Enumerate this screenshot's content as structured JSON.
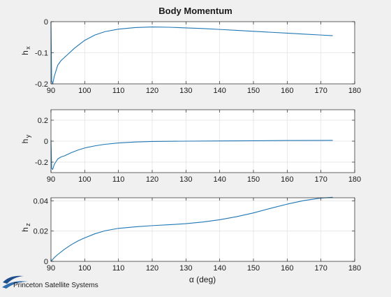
{
  "figure": {
    "title": "Body Momentum",
    "xlabel": "α (deg)",
    "logo_text": "Princeton Satellite Systems"
  },
  "colors": {
    "background": "#f0f0f0",
    "axes_background": "#ffffff",
    "line": "#1f77b4",
    "axis": "#262626",
    "grid": "#e3e3e3",
    "logo": "#1f4e8c"
  },
  "chart_data": [
    {
      "type": "line",
      "title": "Body Momentum",
      "xlabel": "",
      "ylabel": "h",
      "ylabel_subscript": "x",
      "xlim": [
        90,
        180
      ],
      "ylim": [
        -0.2,
        0
      ],
      "xticks": [
        90,
        100,
        110,
        120,
        130,
        140,
        150,
        160,
        170,
        180
      ],
      "yticks": [
        0,
        -0.1,
        -0.2
      ],
      "ytick_labels": [
        "0",
        "-0.1",
        "-0.2"
      ],
      "grid": true,
      "x": [
        90,
        90.2,
        90.5,
        91,
        92,
        93,
        95,
        97,
        100,
        103,
        106,
        110,
        115,
        120,
        125,
        130,
        135,
        140,
        145,
        150,
        155,
        160,
        165,
        170,
        173.5
      ],
      "y": [
        -0.001,
        -0.19,
        -0.2,
        -0.175,
        -0.14,
        -0.125,
        -0.105,
        -0.085,
        -0.06,
        -0.043,
        -0.032,
        -0.024,
        -0.019,
        -0.017,
        -0.018,
        -0.02,
        -0.022,
        -0.025,
        -0.028,
        -0.031,
        -0.034,
        -0.037,
        -0.04,
        -0.043,
        -0.045
      ]
    },
    {
      "type": "line",
      "xlabel": "",
      "ylabel": "h",
      "ylabel_subscript": "y",
      "xlim": [
        90,
        180
      ],
      "ylim": [
        -0.3,
        0.3
      ],
      "xticks": [
        90,
        100,
        110,
        120,
        130,
        140,
        150,
        160,
        170,
        180
      ],
      "yticks": [
        0.2,
        0,
        -0.2
      ],
      "ytick_labels": [
        "0.2",
        "0",
        "-0.2"
      ],
      "grid": true,
      "x": [
        90,
        90.2,
        90.5,
        91,
        92,
        93,
        94,
        96,
        98,
        100,
        103,
        106,
        110,
        115,
        120,
        130,
        140,
        150,
        160,
        170,
        173.5
      ],
      "y": [
        0.01,
        -0.26,
        -0.27,
        -0.22,
        -0.17,
        -0.15,
        -0.14,
        -0.11,
        -0.085,
        -0.065,
        -0.045,
        -0.03,
        -0.017,
        -0.008,
        -0.003,
        0.0,
        0.002,
        0.004,
        0.006,
        0.007,
        0.008
      ]
    },
    {
      "type": "line",
      "xlabel": "α (deg)",
      "ylabel": "h",
      "ylabel_subscript": "z",
      "xlim": [
        90,
        180
      ],
      "ylim": [
        0,
        0.042
      ],
      "xticks": [
        90,
        100,
        110,
        120,
        130,
        140,
        150,
        160,
        170,
        180
      ],
      "yticks": [
        0.04,
        0.02,
        0
      ],
      "ytick_labels": [
        "0.04",
        "0.02",
        "0"
      ],
      "grid": true,
      "x": [
        90,
        91,
        92,
        94,
        96,
        98,
        100,
        103,
        106,
        110,
        115,
        120,
        125,
        130,
        135,
        140,
        145,
        150,
        155,
        160,
        165,
        170,
        173.5
      ],
      "y": [
        0.0,
        0.0025,
        0.0045,
        0.008,
        0.011,
        0.0135,
        0.0155,
        0.0182,
        0.0202,
        0.0218,
        0.0228,
        0.0236,
        0.0242,
        0.0249,
        0.026,
        0.0275,
        0.0295,
        0.032,
        0.035,
        0.0378,
        0.0402,
        0.0418,
        0.0423
      ]
    }
  ]
}
